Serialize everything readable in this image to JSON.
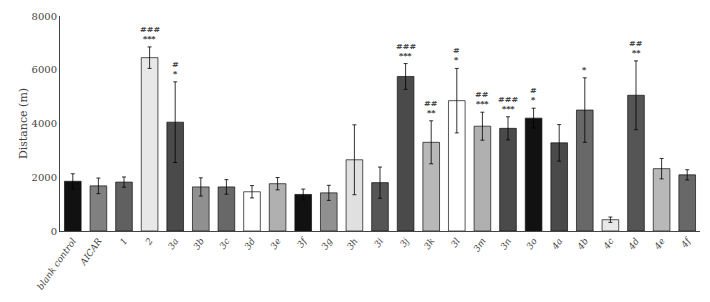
{
  "chart_data": {
    "type": "bar",
    "ylabel": "Distance (m)",
    "categories": [
      "blank control",
      "AICAR",
      "1",
      "2",
      "3a",
      "3b",
      "3c",
      "3d",
      "3e",
      "3f",
      "3g",
      "3h",
      "3i",
      "3j",
      "3k",
      "3l",
      "3m",
      "3n",
      "3o",
      "4a",
      "4b",
      "4c",
      "4d",
      "4e",
      "4f"
    ],
    "values": [
      1850,
      1680,
      1820,
      6450,
      4050,
      1640,
      1640,
      1460,
      1760,
      1360,
      1420,
      2650,
      1800,
      5750,
      3300,
      4850,
      3900,
      3820,
      4200,
      3280,
      4500,
      420,
      5050,
      2320,
      2090
    ],
    "errors": [
      280,
      290,
      190,
      400,
      1500,
      340,
      270,
      230,
      230,
      200,
      280,
      1300,
      580,
      480,
      800,
      1200,
      520,
      430,
      370,
      680,
      1200,
      100,
      1280,
      380,
      190
    ],
    "colors": [
      "#111111",
      "#808080",
      "#606060",
      "#e8e8e8",
      "#4a4a4a",
      "#909090",
      "#686868",
      "#ffffff",
      "#b0b0b0",
      "#111111",
      "#909090",
      "#e0e0e0",
      "#555555",
      "#4a4a4a",
      "#b8b8b8",
      "#ffffff",
      "#b0b0b0",
      "#4a4a4a",
      "#111111",
      "#4a4a4a",
      "#686868",
      "#e8e8e8",
      "#555555",
      "#b8b8b8",
      "#686868"
    ],
    "ylim": [
      0,
      8000
    ],
    "yticks": [
      0,
      2000,
      4000,
      6000,
      8000
    ],
    "grid": false,
    "annotations": [
      {
        "category": "2",
        "texts": [
          "***",
          "###"
        ]
      },
      {
        "category": "3a",
        "texts": [
          "*",
          "#"
        ]
      },
      {
        "category": "3j",
        "texts": [
          "***",
          "###"
        ]
      },
      {
        "category": "3k",
        "texts": [
          "**",
          "##"
        ]
      },
      {
        "category": "3l",
        "texts": [
          "*",
          "#"
        ]
      },
      {
        "category": "3m",
        "texts": [
          "***",
          "##"
        ]
      },
      {
        "category": "3n",
        "texts": [
          "***",
          "###"
        ]
      },
      {
        "category": "3o",
        "texts": [
          "*",
          "#"
        ]
      },
      {
        "category": "4b",
        "texts": [
          "*"
        ]
      },
      {
        "category": "4d",
        "texts": [
          "**",
          "##"
        ]
      }
    ]
  }
}
